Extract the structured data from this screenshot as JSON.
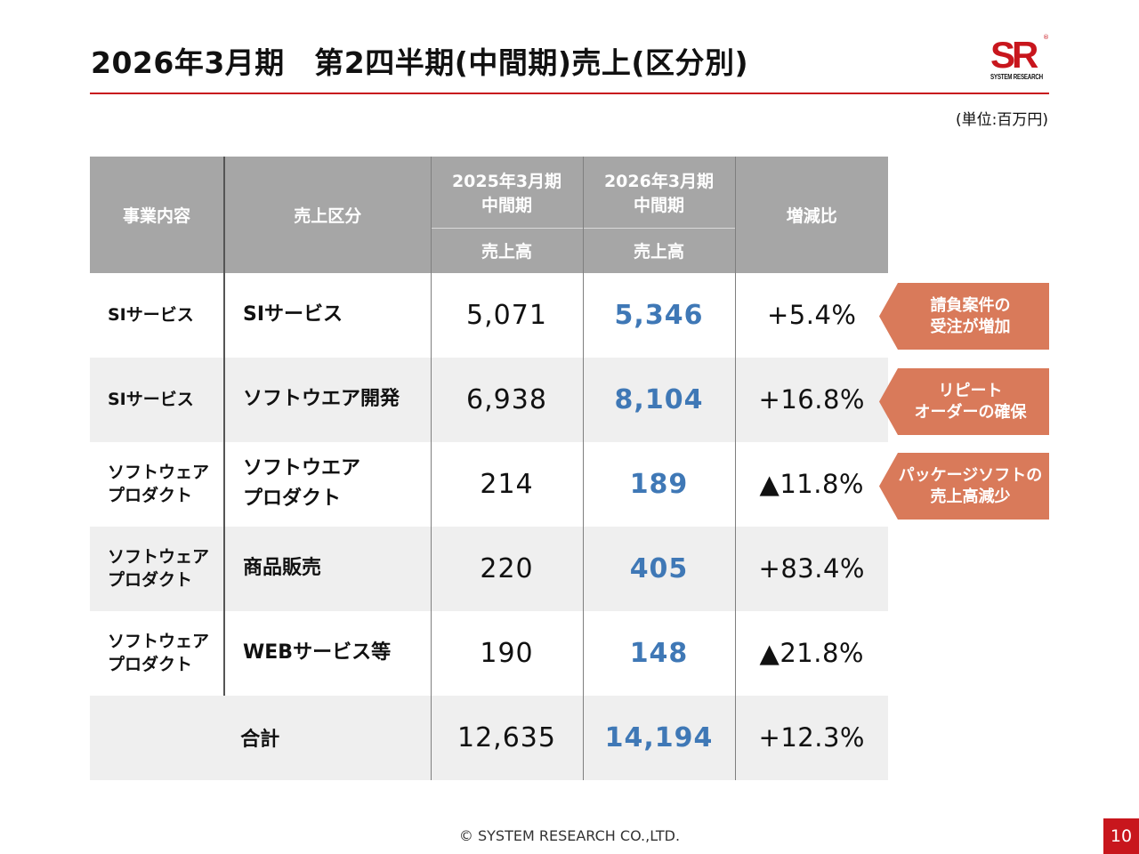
{
  "title": "2026年3月期　第2四半期(中間期)売上(区分別)",
  "logo": {
    "mark": "SR",
    "reg": "®",
    "company": "SYSTEM RESEARCH"
  },
  "unit": "(単位:百万円)",
  "table": {
    "headers": {
      "business": "事業内容",
      "category": "売上区分",
      "prev_period_line1": "2025年3月期",
      "prev_period_line2": "中間期",
      "cur_period_line1": "2026年3月期",
      "cur_period_line2": "中間期",
      "change": "増減比",
      "prev_sub": "売上高",
      "cur_sub": "売上高"
    },
    "rows": [
      {
        "business_l1": "SIサービス",
        "business_l2": "",
        "category_l1": "SIサービス",
        "category_l2": "",
        "prev": "5,071",
        "cur": "5,346",
        "change": "+5.4%"
      },
      {
        "business_l1": "SIサービス",
        "business_l2": "",
        "category_l1": "ソフトウエア開発",
        "category_l2": "",
        "prev": "6,938",
        "cur": "8,104",
        "change": "+16.8%"
      },
      {
        "business_l1": "ソフトウェア",
        "business_l2": "プロダクト",
        "category_l1": "ソフトウエア",
        "category_l2": "プロダクト",
        "prev": "214",
        "cur": "189",
        "change": "▲11.8%"
      },
      {
        "business_l1": "ソフトウェア",
        "business_l2": "プロダクト",
        "category_l1": "商品販売",
        "category_l2": "",
        "prev": "220",
        "cur": "405",
        "change": "+83.4%"
      },
      {
        "business_l1": "ソフトウェア",
        "business_l2": "プロダクト",
        "category_l1": "WEBサービス等",
        "category_l2": "",
        "prev": "190",
        "cur": "148",
        "change": "▲21.8%"
      }
    ],
    "total": {
      "label": "合計",
      "prev": "12,635",
      "cur": "14,194",
      "change": "+12.3%"
    }
  },
  "notes": [
    {
      "line1": "請負案件の",
      "line2": "受注が増加"
    },
    {
      "line1": "リピート",
      "line2": "オーダーの確保"
    },
    {
      "line1": "パッケージソフトの",
      "line2": "売上高減少"
    }
  ],
  "colors": {
    "accent_red": "#c8161d",
    "current_value_blue": "#3f78b6",
    "note_bg": "#d97a5a",
    "header_gray": "#a6a6a6"
  },
  "footer": "© SYSTEM RESEARCH CO.,LTD.",
  "page_number": "10"
}
